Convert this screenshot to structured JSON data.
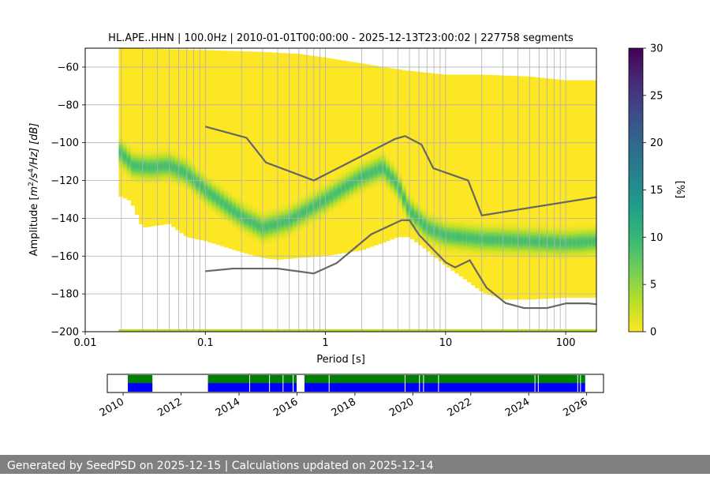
{
  "footer": {
    "generated_label": "Generated by SeedPSD on 2025-12-15",
    "separator": " | ",
    "updated_label": "Calculations updated on 2025-12-14"
  },
  "chart_data": [
    {
      "type": "heatmap",
      "title": "HL.APE..HHN | 100.0Hz | 2010-01-01T00:00:00 - 2025-12-13T23:00:02 | 227758 segments",
      "xlabel": "Period [s]",
      "ylabel_prefix": "Amplitude [",
      "ylabel_m": "m",
      "ylabel_sup2": "2",
      "ylabel_s": "/s",
      "ylabel_sup4": "4",
      "ylabel_suffix": "/Hz] [dB]",
      "x_scale": "log",
      "xlim": [
        0.01,
        180
      ],
      "ylim": [
        -200,
        -50
      ],
      "xticks": [
        0.01,
        0.1,
        1,
        10,
        100
      ],
      "xtick_labels": [
        "0.01",
        "0.1",
        "1",
        "10",
        "100"
      ],
      "yticks": [
        -200,
        -180,
        -160,
        -140,
        -120,
        -100,
        -80,
        -60
      ],
      "ytick_labels": [
        "−200",
        "−180",
        "−160",
        "−140",
        "−120",
        "−100",
        "−80",
        "−60"
      ],
      "grid": true,
      "period_lines": [
        0.02,
        0.03,
        0.04,
        0.05,
        0.06,
        0.07,
        0.08,
        0.09,
        0.2,
        0.3,
        0.4,
        0.5,
        0.6,
        0.7,
        0.8,
        0.9,
        2,
        3,
        4,
        5,
        6,
        7,
        8,
        9,
        20,
        30,
        40,
        50,
        60,
        70,
        80,
        90
      ],
      "colorbar": {
        "label": "[%]",
        "range": [
          0,
          30
        ],
        "ticks": [
          0,
          5,
          10,
          15,
          20,
          25,
          30
        ],
        "tick_labels": [
          "0",
          "5",
          "10",
          "15",
          "20",
          "25",
          "30"
        ],
        "colormap": [
          "#fde725",
          "#b5de2b",
          "#6ece58",
          "#35b779",
          "#1f9e89",
          "#26828e",
          "#31688e",
          "#3e4989",
          "#482878",
          "#440154"
        ]
      },
      "density": {
        "period_min": 0.019,
        "envelope_top": [
          [
            0.019,
            -50
          ],
          [
            0.1,
            -51
          ],
          [
            0.3,
            -52
          ],
          [
            0.6,
            -53
          ],
          [
            1,
            -55
          ],
          [
            2,
            -58
          ],
          [
            3,
            -60
          ],
          [
            5,
            -62
          ],
          [
            10,
            -64
          ],
          [
            20,
            -64
          ],
          [
            50,
            -65
          ],
          [
            100,
            -67
          ],
          [
            180,
            -67
          ]
        ],
        "envelope_bottom": [
          [
            0.019,
            -128
          ],
          [
            0.024,
            -131
          ],
          [
            0.03,
            -145
          ],
          [
            0.05,
            -143
          ],
          [
            0.07,
            -150
          ],
          [
            0.1,
            -152
          ],
          [
            0.2,
            -158
          ],
          [
            0.3,
            -161
          ],
          [
            0.4,
            -162
          ],
          [
            0.6,
            -161
          ],
          [
            1,
            -160
          ],
          [
            2,
            -157
          ],
          [
            3,
            -153
          ],
          [
            4,
            -150
          ],
          [
            5,
            -150
          ],
          [
            7,
            -157
          ],
          [
            10,
            -165
          ],
          [
            15,
            -173
          ],
          [
            20,
            -179
          ],
          [
            30,
            -183
          ],
          [
            50,
            -183
          ],
          [
            100,
            -182
          ],
          [
            180,
            -182
          ]
        ],
        "mode": [
          [
            0.019,
            -104
          ],
          [
            0.025,
            -112
          ],
          [
            0.035,
            -113
          ],
          [
            0.05,
            -112
          ],
          [
            0.07,
            -116
          ],
          [
            0.1,
            -125
          ],
          [
            0.2,
            -139
          ],
          [
            0.3,
            -145
          ],
          [
            0.5,
            -141
          ],
          [
            1,
            -130
          ],
          [
            2,
            -118
          ],
          [
            3,
            -113
          ],
          [
            4,
            -122
          ],
          [
            5,
            -136
          ],
          [
            7,
            -145
          ],
          [
            10,
            -149
          ],
          [
            20,
            -151
          ],
          [
            50,
            -152
          ],
          [
            100,
            -153
          ],
          [
            180,
            -152
          ]
        ],
        "mode_peak_percent": 9
      },
      "series": [
        {
          "name": "",
          "color": "#666666",
          "x": [
            0.1,
            0.22,
            0.32,
            0.8,
            3.8,
            4.6,
            6.3,
            7.9,
            15.4,
            20,
            180
          ],
          "y": [
            -91.5,
            -97.4,
            -110.5,
            -120,
            -98,
            -96.5,
            -101,
            -113.5,
            -120,
            -138.5,
            -128.8
          ]
        },
        {
          "name": "",
          "color": "#666666",
          "x": [
            0.1,
            0.17,
            0.4,
            0.8,
            1.24,
            2.4,
            4.3,
            5,
            6,
            10,
            12,
            15.9,
            21.9,
            31.6,
            45,
            70,
            101,
            154,
            180
          ],
          "y": [
            -168,
            -166.6,
            -166.6,
            -169.2,
            -163.7,
            -148.5,
            -141,
            -141,
            -148.7,
            -163.3,
            -166,
            -162.2,
            -176.7,
            -184.9,
            -187.5,
            -187.5,
            -185,
            -185,
            -185.5
          ]
        }
      ]
    },
    {
      "type": "timeline",
      "x_type": "date",
      "xlim": [
        "2009-06-15",
        "2026-08-01"
      ],
      "xticks": [
        "2010-01-01",
        "2012-01-01",
        "2014-01-01",
        "2016-01-01",
        "2018-01-01",
        "2020-01-01",
        "2022-01-01",
        "2024-01-01",
        "2026-01-01"
      ],
      "xtick_labels": [
        "2010",
        "2012",
        "2014",
        "2016",
        "2018",
        "2020",
        "2022",
        "2024",
        "2026"
      ],
      "colors": {
        "top": "#008000",
        "bottom": "#0000ff"
      },
      "segments": [
        [
          "2010-03-01",
          "2011-01-05"
        ],
        [
          "2012-12-05",
          "2015-11-08"
        ],
        [
          "2015-11-20",
          "2015-12-28"
        ],
        [
          "2016-04-05",
          "2025-12-13"
        ]
      ],
      "gaps": [
        "2014-05-15",
        "2015-01-20",
        "2015-07-10",
        "2017-02-10",
        "2019-09-25",
        "2020-03-25",
        "2020-05-15",
        "2020-11-20",
        "2024-03-20",
        "2024-05-01",
        "2025-09-10",
        "2025-10-15"
      ]
    }
  ]
}
